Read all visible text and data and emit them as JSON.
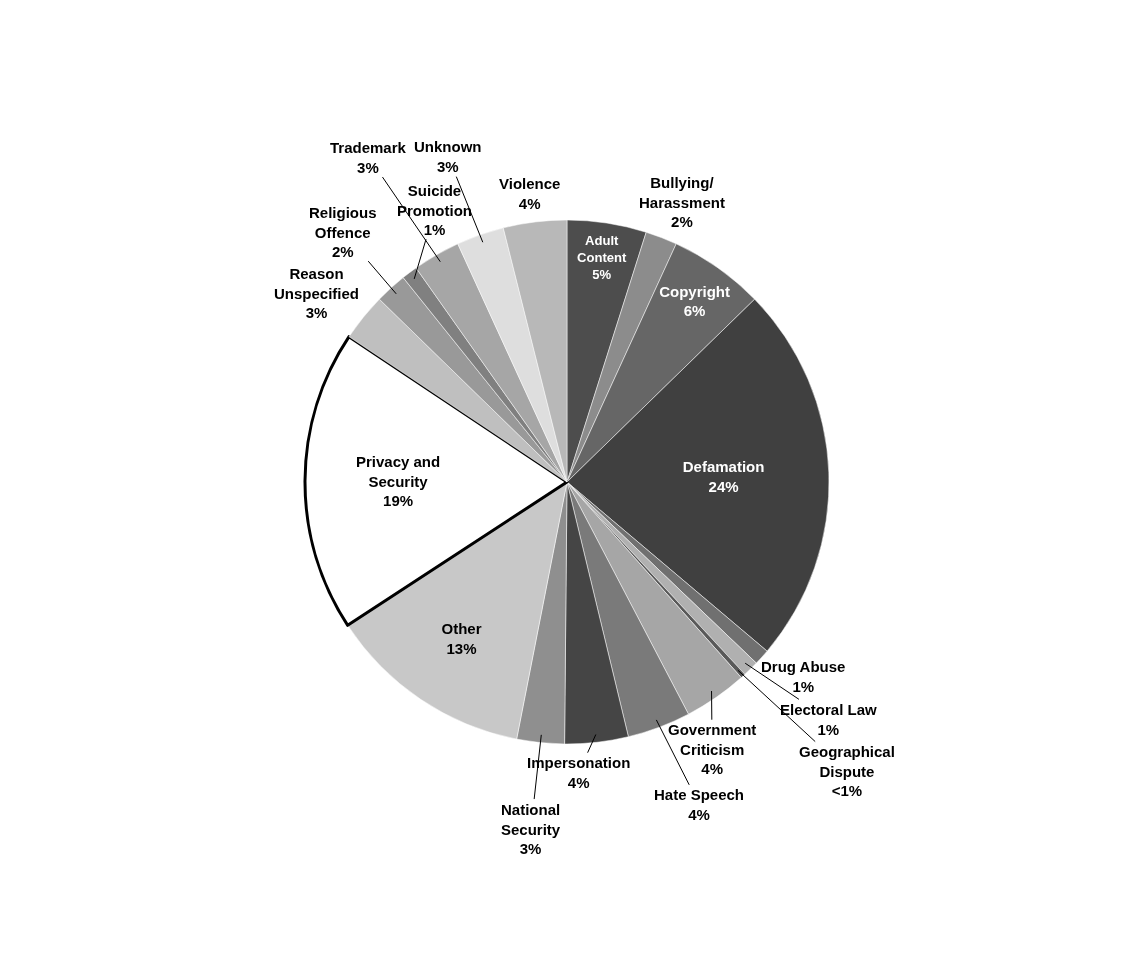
{
  "chart_data": {
    "type": "pie",
    "categories": [
      "Adult Content",
      "Bullying/ Harassment",
      "Copyright",
      "Defamation",
      "Drug Abuse",
      "Electoral Law",
      "Geographical Dispute",
      "Government Criticism",
      "Hate Speech",
      "Impersonation",
      "National Security",
      "Other",
      "Privacy and Security",
      "Reason Unspecified",
      "Religious Offence",
      "Suicide Promotion",
      "Trademark",
      "Unknown",
      "Violence"
    ],
    "values": [
      5,
      2,
      6,
      24,
      1,
      1,
      0.3,
      4,
      4,
      4,
      3,
      13,
      19,
      3,
      2,
      1,
      3,
      3,
      4
    ],
    "value_labels": [
      "5%",
      "2%",
      "6%",
      "24%",
      "1%",
      "1%",
      "<1%",
      "4%",
      "4%",
      "4%",
      "3%",
      "13%",
      "19%",
      "3%",
      "2%",
      "1%",
      "3%",
      "3%",
      "4%"
    ],
    "colors": [
      "#4d4d4d",
      "#8c8c8c",
      "#666666",
      "#404040",
      "#707070",
      "#b0b0b0",
      "#595959",
      "#a6a6a6",
      "#7a7a7a",
      "#454545",
      "#8f8f8f",
      "#c8c8c8",
      "#ffffff",
      "#bfbfbf",
      "#999999",
      "#808080",
      "#a6a6a6",
      "#dedede",
      "#b8b8b8"
    ],
    "legend": false
  }
}
